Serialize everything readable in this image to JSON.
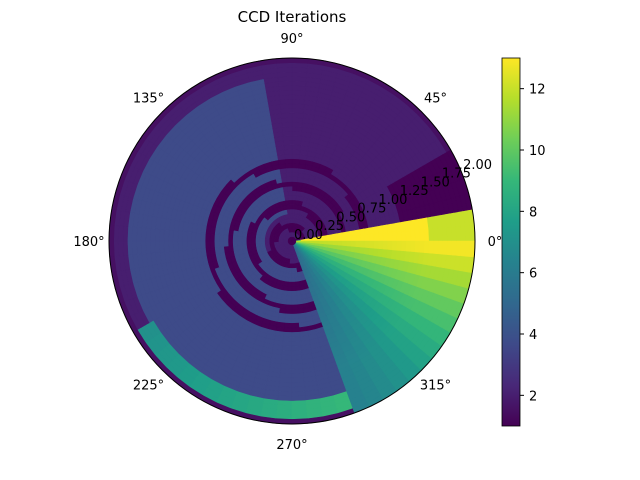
{
  "chart_data": {
    "type": "heatmap",
    "projection": "polar",
    "title": "CCD Iterations",
    "theta_tick_labels": [
      "0°",
      "45°",
      "90°",
      "135°",
      "180°",
      "225°",
      "270°",
      "315°"
    ],
    "theta_ticks_deg": [
      0,
      45,
      90,
      135,
      180,
      225,
      270,
      315
    ],
    "r_tick_labels": [
      "0.00",
      "0.25",
      "0.50",
      "0.75",
      "1.00",
      "1.25",
      "1.50",
      "1.75",
      "2.00"
    ],
    "r_ticks": [
      0,
      0.25,
      0.5,
      0.75,
      1.0,
      1.25,
      1.5,
      1.75,
      2.0
    ],
    "rlim": [
      0,
      2.0
    ],
    "colormap": "viridis",
    "colorbar": {
      "vmin": 1,
      "vmax": 13,
      "tick_labels": [
        "2",
        "4",
        "6",
        "8",
        "10",
        "12"
      ],
      "ticks": [
        2,
        4,
        6,
        8,
        10,
        12
      ]
    },
    "grid": false,
    "description_of_field": {
      "background_value": 2,
      "spiral_arm_values": [
        1,
        4
      ],
      "wedge_sector_deg": [
        -70,
        8
      ],
      "wedge_values_near_zero_deg": 13,
      "outer_band_values_lower_half": [
        6,
        9
      ]
    }
  }
}
